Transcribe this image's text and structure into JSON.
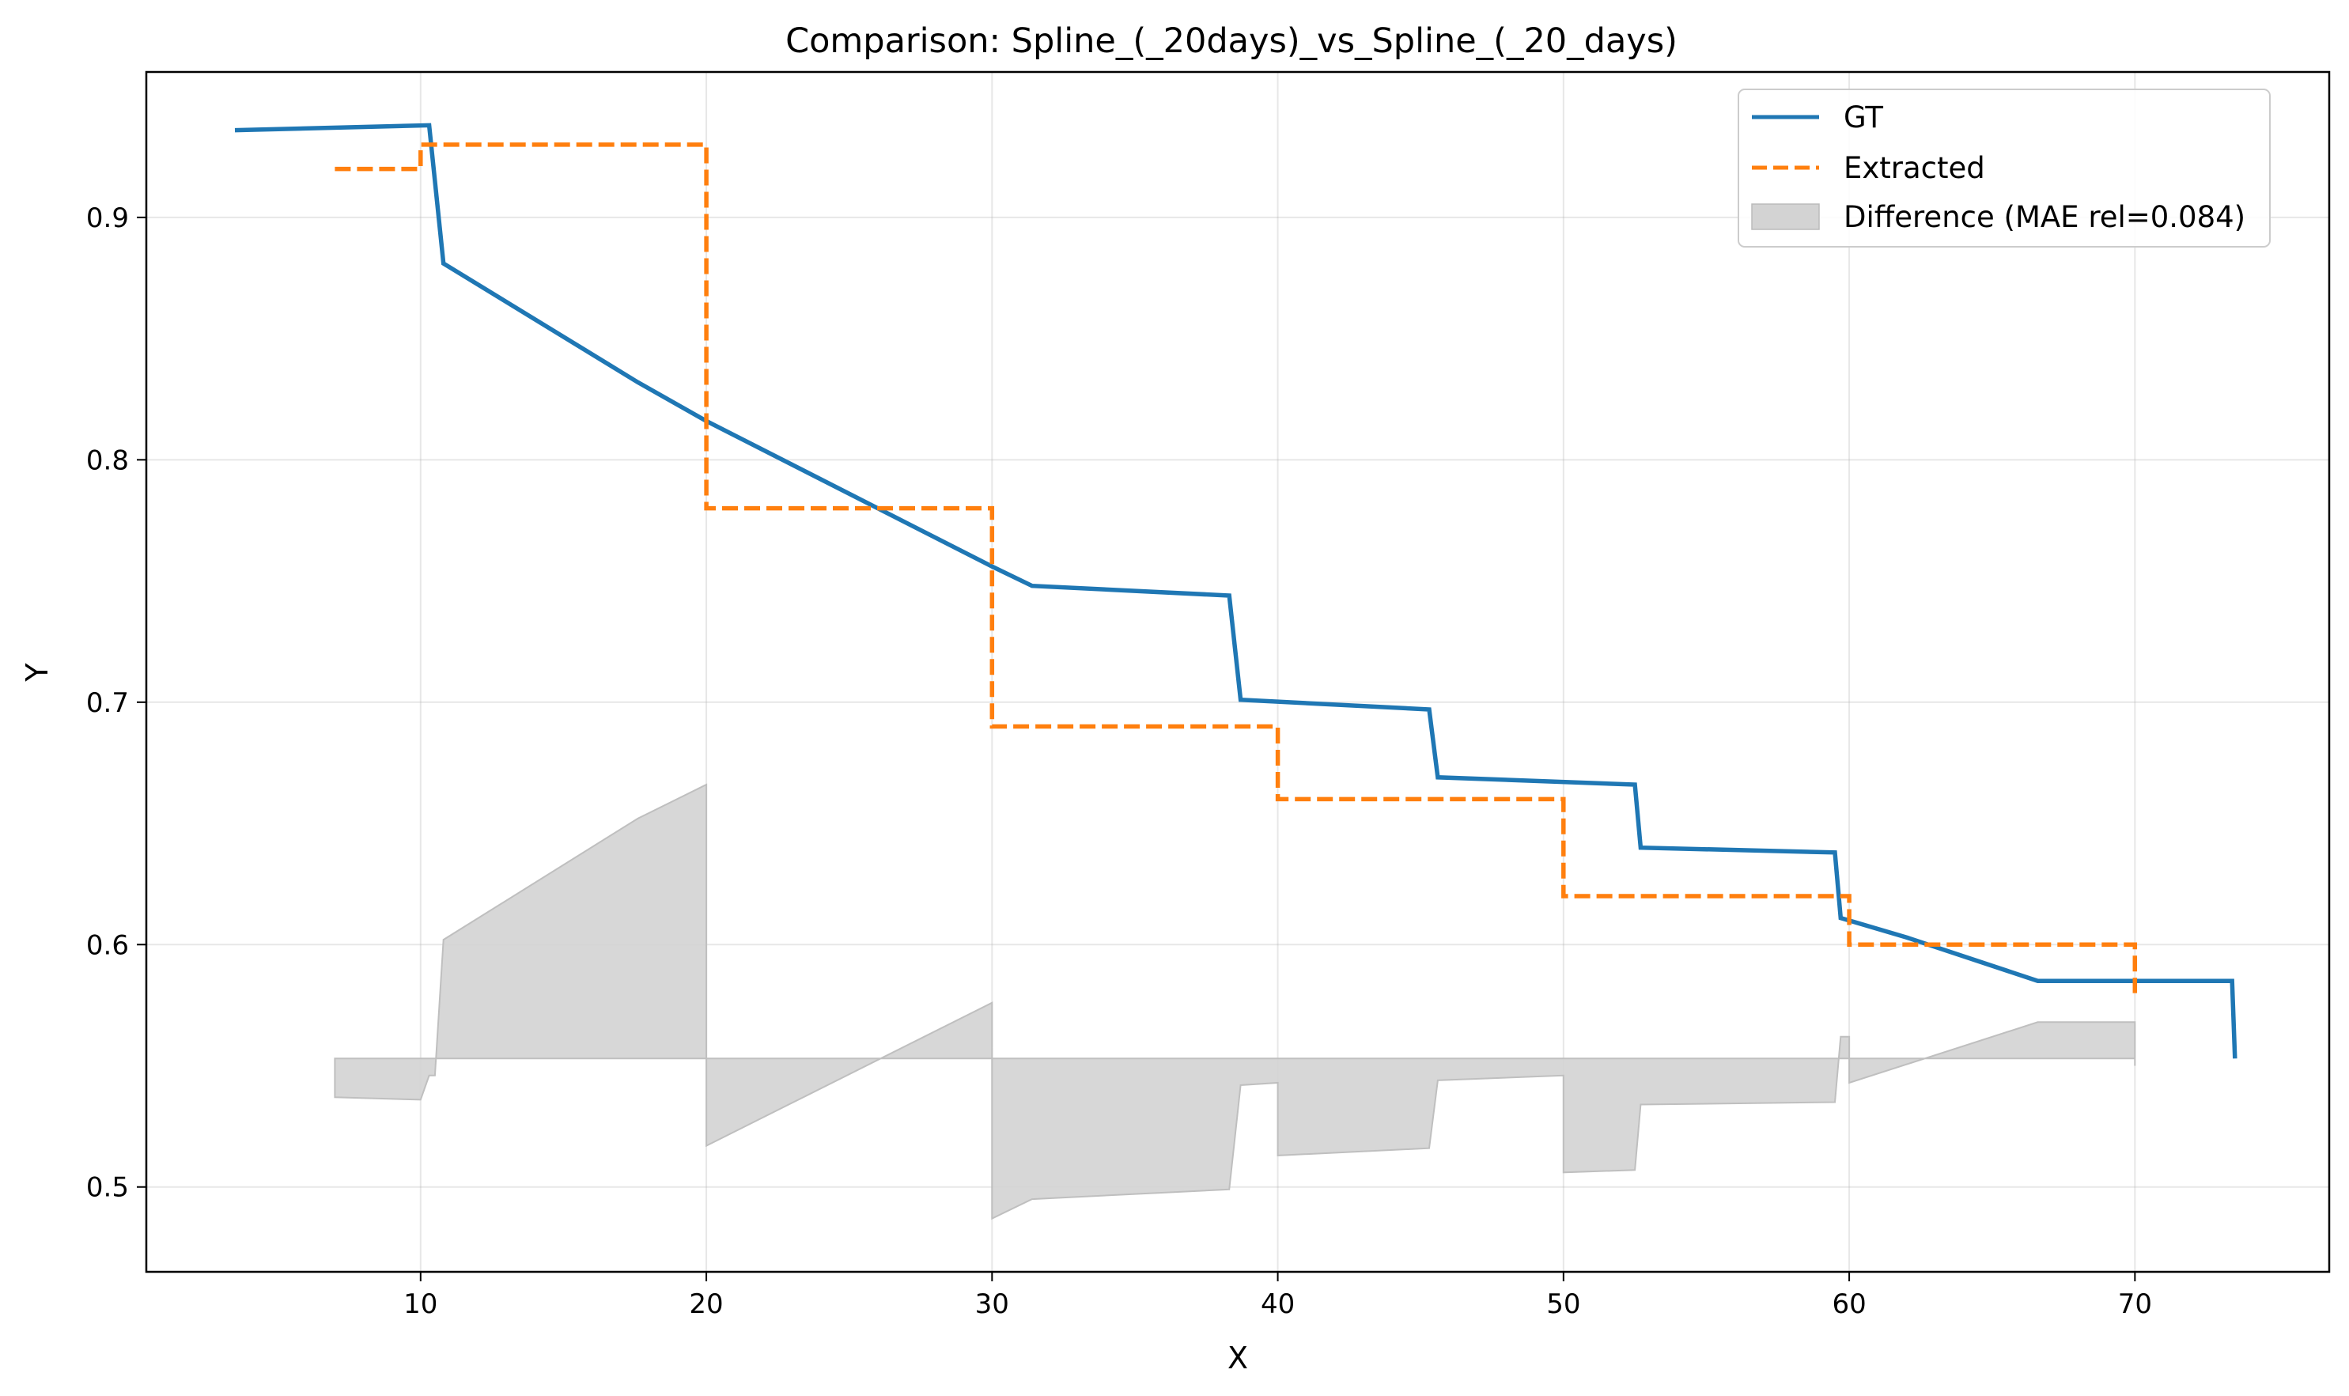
{
  "chart_data": {
    "type": "line",
    "title": "Comparison: Spline_(_20days)_vs_Spline_(_20_days)",
    "xlabel": "X",
    "ylabel": "Y",
    "xlim": [
      0.4,
      76.8
    ],
    "ylim": [
      0.465,
      0.96
    ],
    "x_ticks": [
      10,
      20,
      30,
      40,
      50,
      60,
      70
    ],
    "y_ticks": [
      0.5,
      0.6,
      0.7,
      0.8,
      0.9
    ],
    "y_tick_labels": [
      "0.5",
      "0.6",
      "0.7",
      "0.8",
      "0.9"
    ],
    "grid": true,
    "legend_position": "upper right",
    "series": [
      {
        "name": "GT",
        "style": "solid",
        "color": "#1f77b4",
        "x": [
          3.5,
          10.3,
          10.8,
          17.6,
          20.0,
          30.0,
          31.4,
          38.3,
          38.7,
          45.3,
          45.6,
          52.5,
          52.7,
          59.5,
          59.7,
          62.0,
          66.6,
          73.4,
          73.5
        ],
        "y": [
          0.936,
          0.938,
          0.881,
          0.832,
          0.816,
          0.756,
          0.748,
          0.744,
          0.701,
          0.697,
          0.669,
          0.666,
          0.64,
          0.638,
          0.611,
          0.603,
          0.585,
          0.585,
          0.553
        ]
      },
      {
        "name": "Extracted",
        "style": "dashed",
        "color": "#ff7f0e",
        "x": [
          7.0,
          10.0,
          10.0,
          20.0,
          20.0,
          30.0,
          30.0,
          40.0,
          40.0,
          50.0,
          50.0,
          60.0,
          60.0,
          70.0,
          70.0
        ],
        "y": [
          0.92,
          0.92,
          0.93,
          0.93,
          0.78,
          0.78,
          0.69,
          0.69,
          0.66,
          0.66,
          0.62,
          0.62,
          0.6,
          0.6,
          0.58
        ]
      },
      {
        "name": "Difference (MAE rel=0.084)",
        "style": "fill",
        "color": "#d3d3d3",
        "baseline": 0.553,
        "x": [
          7.0,
          10.0,
          10.3,
          10.5,
          10.8,
          17.6,
          20.0,
          20.0,
          30.0,
          30.0,
          31.4,
          38.3,
          38.7,
          40.0,
          40.0,
          45.3,
          45.6,
          50.0,
          50.0,
          52.5,
          52.7,
          59.5,
          59.7,
          60.0,
          60.0,
          66.6,
          70.0,
          70.0
        ],
        "y": [
          0.537,
          0.536,
          0.546,
          0.546,
          0.602,
          0.652,
          0.666,
          0.517,
          0.576,
          0.487,
          0.495,
          0.499,
          0.542,
          0.543,
          0.513,
          0.516,
          0.544,
          0.546,
          0.506,
          0.507,
          0.534,
          0.535,
          0.562,
          0.562,
          0.543,
          0.568,
          0.568,
          0.55
        ]
      }
    ]
  }
}
